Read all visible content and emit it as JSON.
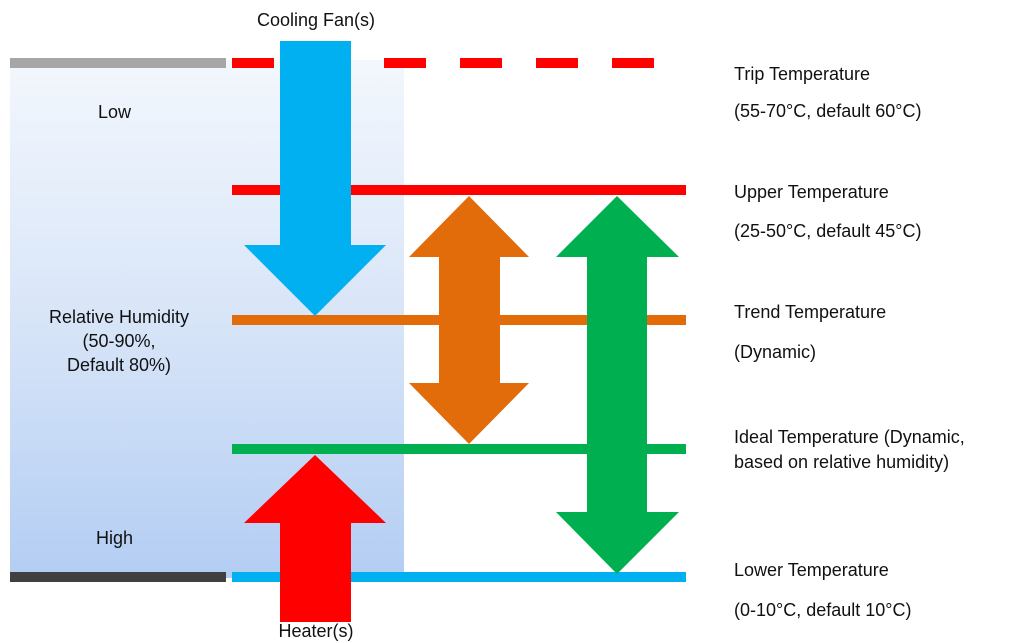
{
  "humidity": {
    "low_label": "Low",
    "high_label": "High",
    "title_line1": "Relative Humidity",
    "title_line2": "(50-90%,",
    "title_line3": "Default 80%)"
  },
  "devices": {
    "cooling_label": "Cooling Fan(s)",
    "heater_label": "Heater(s)"
  },
  "levels": [
    {
      "name": "Trip Temperature",
      "detail": "(55-70°C, default 60°C)",
      "color": "#ff0000",
      "style": "dashed"
    },
    {
      "name": "Upper Temperature",
      "detail": "(25-50°C, default 45°C)",
      "color": "#ff0000",
      "style": "solid"
    },
    {
      "name": "Trend Temperature",
      "detail": "(Dynamic)",
      "color": "#e36c0a",
      "style": "solid"
    },
    {
      "name": "Ideal Temperature (Dynamic,",
      "detail": "based on relative humidity)",
      "color": "#00b050",
      "style": "solid"
    },
    {
      "name": "Lower Temperature",
      "detail": "(0-10°C, default 10°C)",
      "color": "#00b0f0",
      "style": "solid"
    }
  ],
  "colors": {
    "cooling_arrow": "#00b0f0",
    "heater_arrow": "#ff0000",
    "trend_arrow": "#e36c0a",
    "range_arrow": "#00b050",
    "low_marker": "#a6a6a6",
    "high_marker": "#404040"
  }
}
